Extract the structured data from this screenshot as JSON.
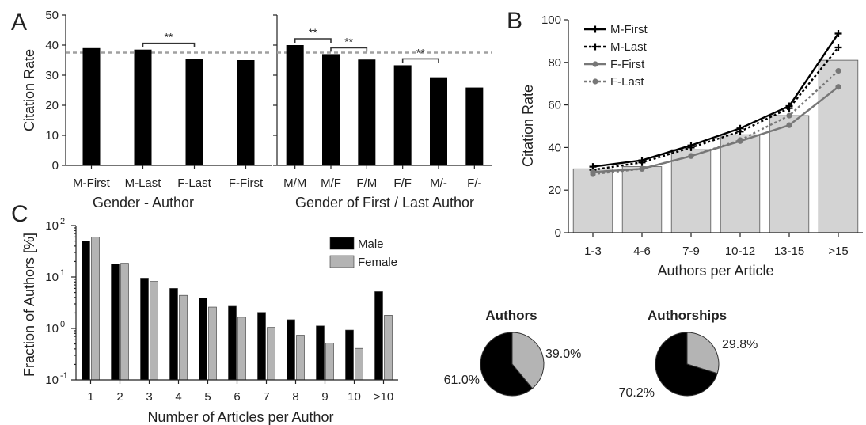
{
  "panel_labels": {
    "a": "A",
    "b": "B",
    "c": "C"
  },
  "chart_data": [
    {
      "id": "A1",
      "type": "bar",
      "categories": [
        "M-First",
        "M-Last",
        "F-Last",
        "F-First"
      ],
      "values": [
        39.0,
        38.5,
        35.5,
        35.0
      ],
      "xlabel": "Gender - Author",
      "ylabel": "Citation Rate",
      "ylim": [
        0,
        50
      ],
      "yticks": [
        "0",
        "10",
        "20",
        "30",
        "40",
        "50"
      ],
      "reference_line": 37.5,
      "significance": [
        {
          "from": 1,
          "to": 2,
          "label": "**"
        }
      ],
      "bar_color": "#000000"
    },
    {
      "id": "A2",
      "type": "bar",
      "categories": [
        "M/M",
        "M/F",
        "F/M",
        "F/F",
        "M/-",
        "F/-"
      ],
      "values": [
        40.0,
        37.0,
        35.2,
        33.3,
        29.3,
        25.9
      ],
      "xlabel": "Gender of First / Last Author",
      "ylim": [
        0,
        50
      ],
      "reference_line": 37.5,
      "significance": [
        {
          "from": 0,
          "to": 1,
          "label": "**"
        },
        {
          "from": 1,
          "to": 2,
          "label": "**"
        },
        {
          "from": 3,
          "to": 4,
          "label": "**"
        }
      ],
      "bar_color": "#000000"
    },
    {
      "id": "B",
      "type": "line",
      "categories": [
        "1-3",
        "4-6",
        "7-9",
        "10-12",
        "13-15",
        ">15"
      ],
      "bars": [
        30.0,
        31.0,
        39.0,
        46.0,
        55.0,
        81.0
      ],
      "series": [
        {
          "name": "M-First",
          "values": [
            31.0,
            34.0,
            41.0,
            49.0,
            59.5,
            93.5
          ],
          "color": "#000000",
          "dash": "solid",
          "marker": "plus"
        },
        {
          "name": "M-Last",
          "values": [
            29.5,
            33.0,
            40.0,
            47.5,
            58.5,
            87.0
          ],
          "color": "#000000",
          "dash": "dotted",
          "marker": "plus"
        },
        {
          "name": "F-First",
          "values": [
            28.5,
            30.0,
            36.0,
            43.0,
            50.5,
            68.5
          ],
          "color": "#777777",
          "dash": "solid",
          "marker": "circle"
        },
        {
          "name": "F-Last",
          "values": [
            27.5,
            30.0,
            36.0,
            43.5,
            55.0,
            76.0
          ],
          "color": "#777777",
          "dash": "dotted",
          "marker": "circle"
        }
      ],
      "xlabel": "Authors per Article",
      "ylabel": "Citation Rate",
      "ylim": [
        0,
        100
      ],
      "yticks": [
        "0",
        "20",
        "40",
        "60",
        "80",
        "100"
      ],
      "legend": "top-left",
      "bar_color": "#d3d3d3"
    },
    {
      "id": "C",
      "type": "bar",
      "scale": "log",
      "categories": [
        "1",
        "2",
        "3",
        "4",
        "5",
        "6",
        "7",
        "8",
        "9",
        "10",
        ">10"
      ],
      "series": [
        {
          "name": "Male",
          "values": [
            50,
            18,
            9.5,
            6.0,
            3.9,
            2.7,
            2.05,
            1.48,
            1.12,
            0.93,
            5.2
          ],
          "color": "#000000"
        },
        {
          "name": "Female",
          "values": [
            60,
            18.5,
            8.2,
            4.4,
            2.6,
            1.65,
            1.05,
            0.74,
            0.52,
            0.41,
            1.8
          ],
          "color": "#b4b4b4"
        }
      ],
      "xlabel": "Number of Articles per Author",
      "ylabel": "Fraction of Authors [%]",
      "ylim": [
        0.1,
        100
      ],
      "legend": "top-right"
    },
    {
      "id": "pie-authors",
      "type": "pie",
      "title": "Authors",
      "slices": [
        {
          "label": "61.0%",
          "value": 61.0,
          "color": "#000000"
        },
        {
          "label": "39.0%",
          "value": 39.0,
          "color": "#b4b4b4"
        }
      ]
    },
    {
      "id": "pie-authorships",
      "type": "pie",
      "title": "Authorships",
      "slices": [
        {
          "label": "70.2%",
          "value": 70.2,
          "color": "#000000"
        },
        {
          "label": "29.8%",
          "value": 29.8,
          "color": "#b4b4b4"
        }
      ]
    }
  ]
}
